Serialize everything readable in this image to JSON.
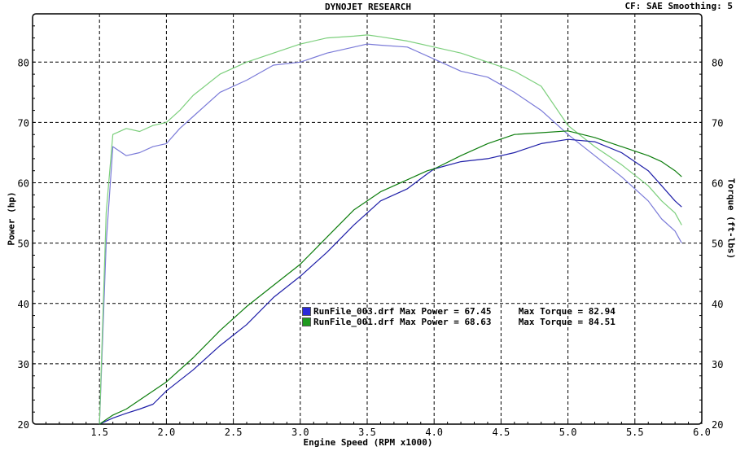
{
  "header": {
    "title": "DYNOJET RESEARCH",
    "info": "CF: SAE  Smoothing: 5"
  },
  "axes": {
    "xlabel": "Engine Speed (RPM x1000)",
    "ylabel_left": "Power (hp)",
    "ylabel_right": "Torque (ft-lbs)"
  },
  "legend": [
    {
      "file": "RunFile_003.drf",
      "max_power_label": "Max Power = 67.45",
      "max_torque_label": "Max Torque = 82.94",
      "color": "#2a2ad8"
    },
    {
      "file": "RunFile_001.drf",
      "max_power_label": "Max Power = 68.63",
      "max_torque_label": "Max Torque = 84.51",
      "color": "#1e9a1e"
    }
  ],
  "chart_data": {
    "type": "line",
    "title": "DYNOJET RESEARCH",
    "xlabel": "Engine Speed (RPM x1000)",
    "ylabel": "Power (hp)",
    "y2label": "Torque (ft-lbs)",
    "xlim": [
      1.0,
      6.0
    ],
    "ylim": [
      20,
      88
    ],
    "y2lim": [
      20,
      88
    ],
    "xticks": [
      "1.5",
      "2.0",
      "2.5",
      "3.0",
      "3.5",
      "4.0",
      "4.5",
      "5.0",
      "5.5",
      "6.0"
    ],
    "yticks": [
      "20",
      "30",
      "40",
      "50",
      "60",
      "70",
      "80"
    ],
    "grid": true,
    "legend_position": "center",
    "series": [
      {
        "name": "RunFile_003.drf",
        "kind": "power",
        "axis": "left",
        "color": "#1f1fa8",
        "x": [
          1.5,
          1.6,
          1.7,
          1.8,
          1.9,
          2.0,
          2.2,
          2.4,
          2.6,
          2.8,
          3.0,
          3.2,
          3.4,
          3.6,
          3.8,
          3.95,
          4.0,
          4.2,
          4.4,
          4.6,
          4.8,
          5.0,
          5.2,
          5.4,
          5.6,
          5.7,
          5.8,
          5.85
        ],
        "y": [
          20,
          21,
          21.8,
          22.5,
          23.3,
          25.5,
          29,
          33,
          36.5,
          41,
          44.5,
          48.5,
          53,
          57,
          59,
          61.5,
          62.3,
          63.5,
          64,
          65,
          66.5,
          67.2,
          66.8,
          65,
          62,
          59.5,
          57,
          56
        ]
      },
      {
        "name": "RunFile_001.drf",
        "kind": "power",
        "axis": "left",
        "color": "#0e7e0e",
        "x": [
          1.5,
          1.6,
          1.7,
          1.8,
          1.9,
          2.0,
          2.2,
          2.4,
          2.6,
          2.8,
          3.0,
          3.2,
          3.4,
          3.6,
          3.8,
          3.95,
          4.0,
          4.2,
          4.4,
          4.6,
          4.8,
          5.0,
          5.2,
          5.4,
          5.6,
          5.7,
          5.8,
          5.85
        ],
        "y": [
          20,
          21.5,
          22.5,
          24,
          25.5,
          27,
          31,
          35.5,
          39.5,
          43,
          46.5,
          51,
          55.5,
          58.5,
          60.5,
          62,
          62.3,
          64.5,
          66.5,
          68,
          68.3,
          68.6,
          67.5,
          66,
          64.5,
          63.5,
          62,
          61
        ]
      },
      {
        "name": "RunFile_003.drf",
        "kind": "torque",
        "axis": "right",
        "color": "#7a7ad8",
        "x": [
          1.5,
          1.55,
          1.6,
          1.7,
          1.8,
          1.9,
          2.0,
          2.1,
          2.2,
          2.4,
          2.6,
          2.8,
          3.0,
          3.2,
          3.4,
          3.5,
          3.6,
          3.8,
          4.0,
          4.2,
          4.4,
          4.6,
          4.8,
          5.0,
          5.2,
          5.4,
          5.6,
          5.7,
          5.8,
          5.85
        ],
        "y": [
          20,
          50,
          66,
          64.5,
          65,
          66,
          66.5,
          69,
          71,
          75,
          77,
          79.5,
          80,
          81.5,
          82.5,
          83,
          82.8,
          82.5,
          80.5,
          78.5,
          77.5,
          75,
          72,
          68,
          64.5,
          61,
          57,
          54,
          52,
          50
        ]
      },
      {
        "name": "RunFile_001.drf",
        "kind": "torque",
        "axis": "right",
        "color": "#7ccf7c",
        "x": [
          1.5,
          1.55,
          1.6,
          1.7,
          1.8,
          1.9,
          2.0,
          2.1,
          2.2,
          2.4,
          2.6,
          2.8,
          3.0,
          3.2,
          3.4,
          3.5,
          3.6,
          3.8,
          4.0,
          4.2,
          4.4,
          4.6,
          4.8,
          5.0,
          5.2,
          5.4,
          5.6,
          5.7,
          5.8,
          5.85
        ],
        "y": [
          20,
          55,
          68,
          69,
          68.5,
          69.5,
          70,
          72,
          74.5,
          78,
          80,
          81.5,
          83,
          84,
          84.3,
          84.5,
          84.2,
          83.5,
          82.5,
          81.5,
          80,
          78.5,
          76,
          69.5,
          66,
          63,
          59.5,
          57,
          55,
          53
        ]
      }
    ]
  }
}
